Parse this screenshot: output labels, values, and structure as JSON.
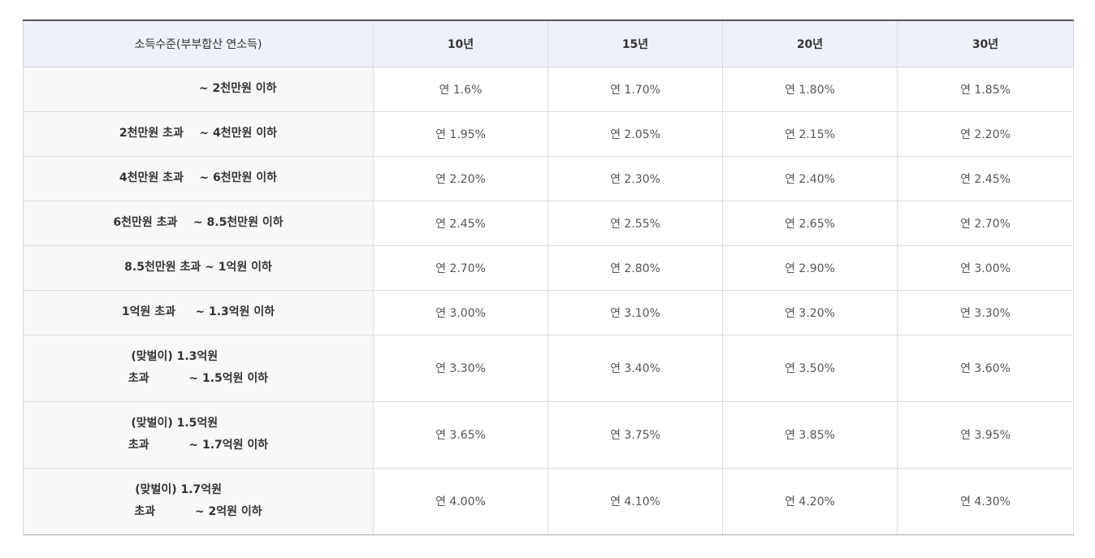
{
  "table": {
    "headers": [
      "소득수준(부부합산 연소득)",
      "10년",
      "15년",
      "20년",
      "30년"
    ],
    "rows": [
      {
        "label": "                    ~ 2천만원 이하",
        "values": [
          "연 1.6%",
          "연 1.70%",
          "연 1.80%",
          "연 1.85%"
        ]
      },
      {
        "label": "2천만원 초과    ~ 4천만원 이하",
        "values": [
          "연 1.95%",
          "연 2.05%",
          "연 2.15%",
          "연 2.20%"
        ]
      },
      {
        "label": "4천만원 초과    ~ 6천만원 이하",
        "values": [
          "연 2.20%",
          "연 2.30%",
          "연 2.40%",
          "연 2.45%"
        ]
      },
      {
        "label": "6천만원 초과    ~ 8.5천만원 이하",
        "values": [
          "연 2.45%",
          "연 2.55%",
          "연 2.65%",
          "연 2.70%"
        ]
      },
      {
        "label": "8.5천만원 초과 ~ 1억원 이하",
        "values": [
          "연 2.70%",
          "연 2.80%",
          "연 2.90%",
          "연 3.00%"
        ]
      },
      {
        "label": "1억원 초과     ~ 1.3억원 이하",
        "values": [
          "연 3.00%",
          "연 3.10%",
          "연 3.20%",
          "연 3.30%"
        ]
      },
      {
        "label": "(맞벌이) 1.3억원            \n초과          ~ 1.5억원 이하",
        "values": [
          "연 3.30%",
          "연 3.40%",
          "연 3.50%",
          "연 3.60%"
        ]
      },
      {
        "label": "(맞벌이) 1.5억원            \n초과          ~ 1.7억원 이하",
        "values": [
          "연 3.65%",
          "연 3.75%",
          "연 3.85%",
          "연 3.95%"
        ]
      },
      {
        "label": "(맞벌이) 1.7억원          \n초과          ~ 2억원 이하",
        "values": [
          "연 4.00%",
          "연 4.10%",
          "연 4.20%",
          "연 4.30%"
        ]
      }
    ]
  }
}
